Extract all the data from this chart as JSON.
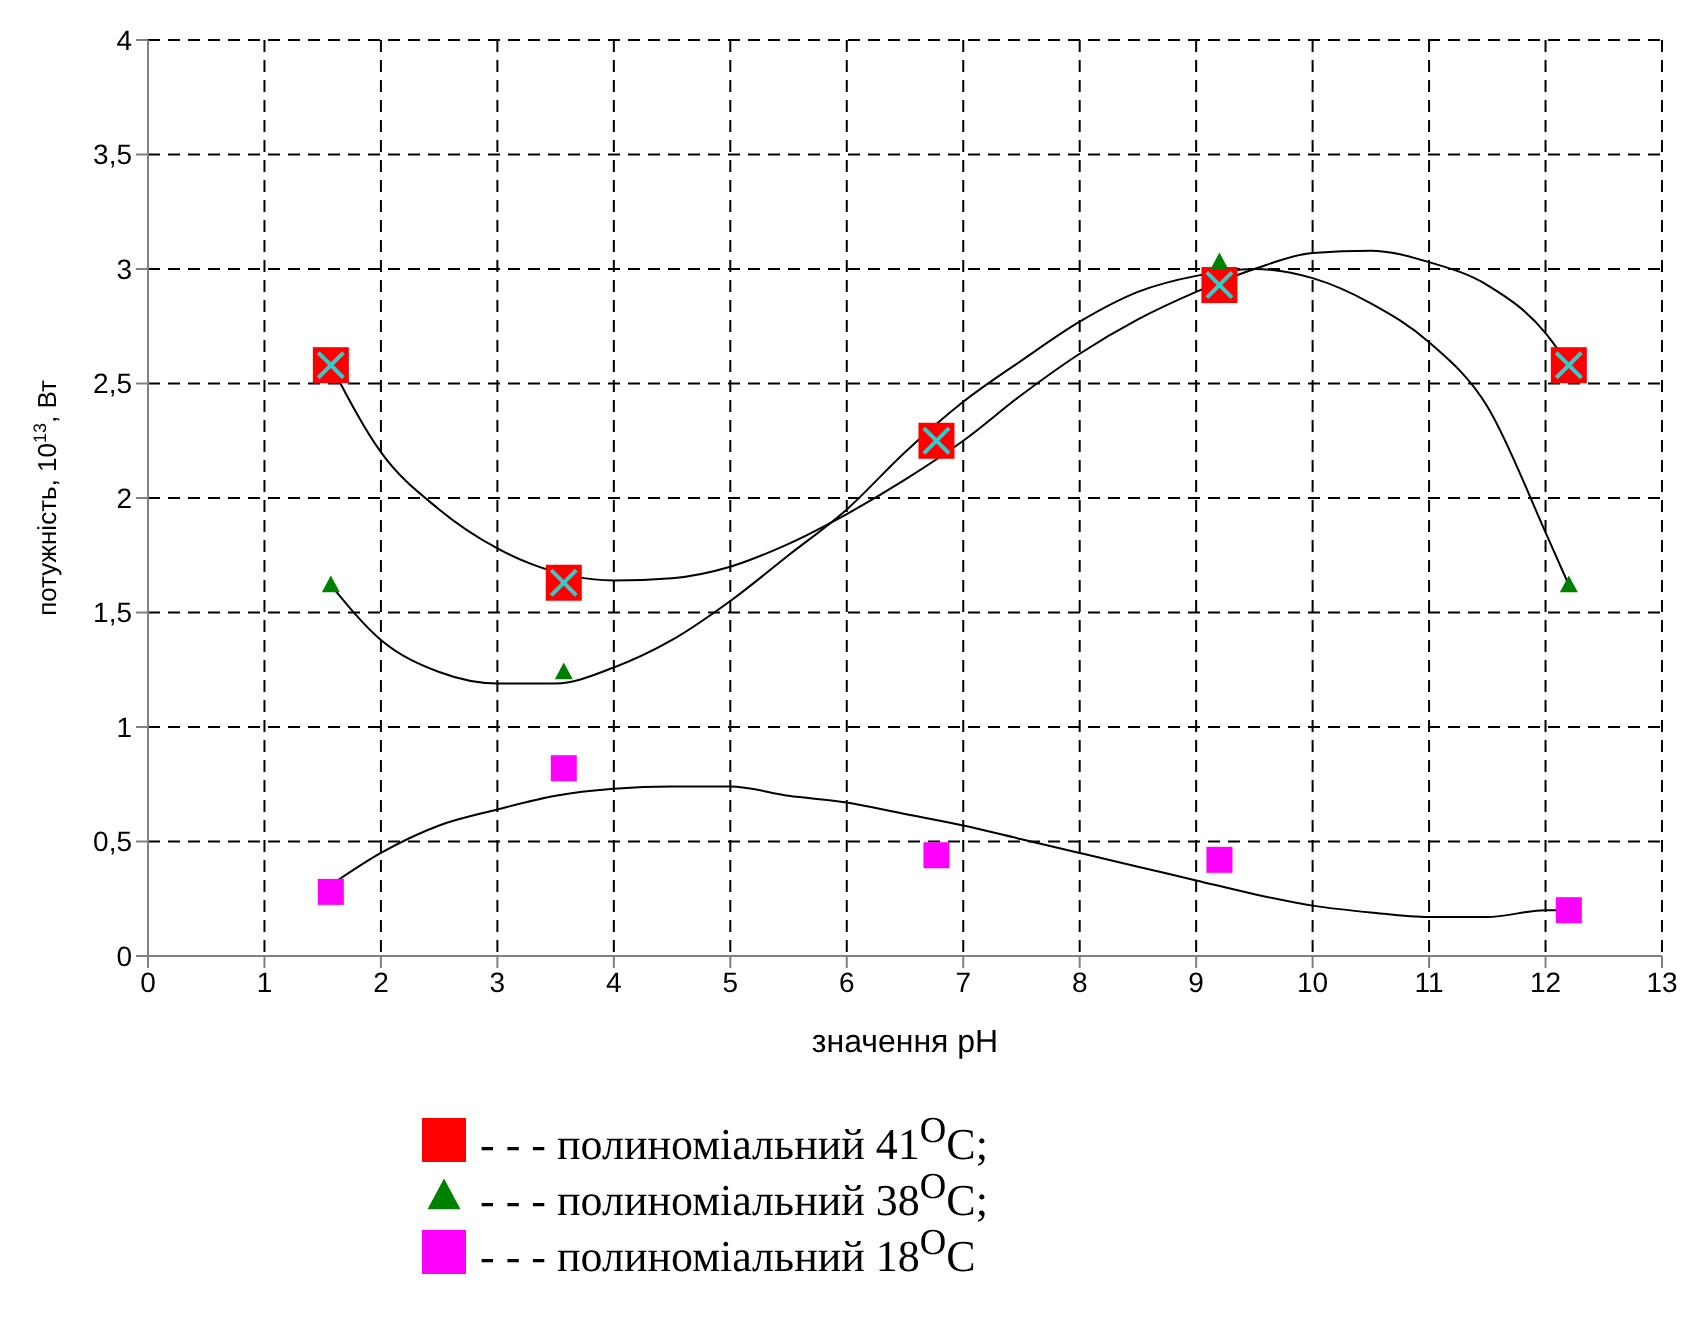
{
  "chart_data": {
    "type": "scatter",
    "xlabel": "значення pH",
    "ylabel": "потужність, 10$^{13}$, Вт",
    "xlim": [
      0,
      13
    ],
    "xticks": [
      0,
      1,
      2,
      3,
      4,
      5,
      6,
      7,
      8,
      9,
      10,
      11,
      12,
      13
    ],
    "ylim": [
      0,
      4
    ],
    "yticks": [
      0,
      {
        "value": 0.5,
        "label": "0,5"
      },
      1,
      {
        "value": 1.5,
        "label": "1,5"
      },
      2,
      {
        "value": 2.5,
        "label": "2,5"
      },
      3,
      {
        "value": 3.5,
        "label": "3,5"
      },
      4
    ],
    "grid": true,
    "legend": "bottom",
    "series": [
      {
        "type": "line",
        "color": "#000000",
        "marker": "none",
        "x": [
          1.57,
          2,
          2.5,
          3,
          3.3,
          4,
          4.5,
          5,
          5.5,
          6,
          6.5,
          7,
          7.5,
          8,
          8.5,
          9,
          9.5,
          10,
          10.5,
          11,
          11.5,
          12,
          12.2
        ],
        "values": [
          2.58,
          2.2,
          1.95,
          1.78,
          1.71,
          1.64,
          1.65,
          1.7,
          1.8,
          1.93,
          2.08,
          2.25,
          2.45,
          2.63,
          2.78,
          2.9,
          3.0,
          3.07,
          3.08,
          3.03,
          2.93,
          2.72,
          2.58
        ]
      },
      {
        "type": "line",
        "color": "#000000",
        "marker": "none",
        "x": [
          1.57,
          2,
          2.5,
          3,
          3.5,
          4,
          4.5,
          5,
          5.5,
          6,
          6.5,
          7,
          7.5,
          8,
          8.5,
          9,
          9.5,
          10,
          10.5,
          11,
          11.5,
          12,
          12.2
        ],
        "values": [
          1.62,
          1.38,
          1.24,
          1.19,
          1.19,
          1.26,
          1.38,
          1.55,
          1.75,
          1.95,
          2.2,
          2.42,
          2.6,
          2.77,
          2.9,
          2.97,
          3.0,
          2.96,
          2.85,
          2.68,
          2.4,
          1.85,
          1.62
        ]
      },
      {
        "type": "line",
        "color": "#000000",
        "marker": "none",
        "x": [
          1.57,
          2,
          2.5,
          3,
          3.5,
          4,
          4.5,
          5,
          5.5,
          6,
          6.5,
          7,
          7.5,
          8,
          8.5,
          9,
          9.5,
          10,
          10.5,
          11,
          11.5,
          12,
          12.2
        ],
        "values": [
          0.31,
          0.45,
          0.57,
          0.64,
          0.7,
          0.73,
          0.74,
          0.74,
          0.7,
          0.67,
          0.62,
          0.57,
          0.51,
          0.45,
          0.39,
          0.33,
          0.27,
          0.22,
          0.19,
          0.17,
          0.17,
          0.2,
          0.2
        ]
      },
      {
        "name": "- - - полиноміальний 41$^{O}$C;",
        "color": "#ff0000",
        "marker": "square",
        "x": [
          1.57,
          3.57,
          6.77,
          9.2,
          12.2
        ],
        "values": [
          2.58,
          1.63,
          2.25,
          2.93,
          2.58
        ]
      },
      {
        "color": "#33cccc",
        "marker": "cross",
        "x": [
          1.57,
          3.57,
          6.77,
          9.2,
          12.2
        ],
        "values": [
          2.58,
          1.63,
          2.25,
          2.93,
          2.58
        ]
      },
      {
        "name": "- - - полиноміальний 38$^{O}$C;",
        "color": "#008000",
        "marker": "triangle",
        "x": [
          1.57,
          3.57,
          9.2,
          12.2
        ],
        "values": [
          1.62,
          1.24,
          3.03,
          1.62
        ]
      },
      {
        "name": "- - - полиноміальний 18$^{O}$C",
        "color": "#ff00ff",
        "marker": "square",
        "x": [
          1.57,
          3.57,
          6.77,
          9.2,
          12.2
        ],
        "values": [
          0.28,
          0.82,
          0.44,
          0.42,
          0.2
        ]
      }
    ]
  }
}
